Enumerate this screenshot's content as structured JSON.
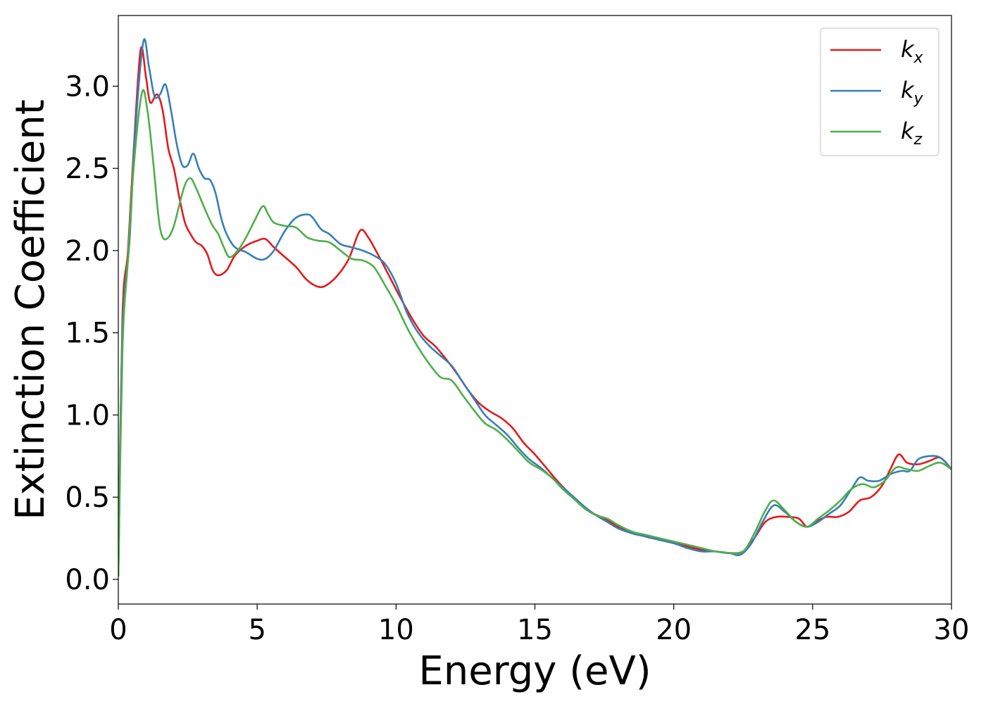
{
  "chart_data": {
    "type": "line",
    "title": "",
    "xlabel": "Energy (eV)",
    "ylabel": "Extinction Coefficient",
    "xlim": [
      0,
      30
    ],
    "ylim": [
      -0.15,
      3.43
    ],
    "xticks": [
      0,
      5,
      10,
      15,
      20,
      25,
      30
    ],
    "xtick_labels": [
      "0",
      "5",
      "10",
      "15",
      "20",
      "25",
      "30"
    ],
    "yticks": [
      0.0,
      0.5,
      1.0,
      1.5,
      2.0,
      2.5,
      3.0
    ],
    "ytick_labels": [
      "0.0",
      "0.5",
      "1.0",
      "1.5",
      "2.0",
      "2.5",
      "3.0"
    ],
    "grid": false,
    "legend_position": "top-right",
    "series": [
      {
        "name": "k",
        "subscript": "x",
        "color": "#e41a1c",
        "points": [
          [
            0,
            0.02
          ],
          [
            0.15,
            1.6
          ],
          [
            0.35,
            2.0
          ],
          [
            0.55,
            2.6
          ],
          [
            0.8,
            3.22
          ],
          [
            1.0,
            3.05
          ],
          [
            1.15,
            2.9
          ],
          [
            1.4,
            2.95
          ],
          [
            1.6,
            2.85
          ],
          [
            1.8,
            2.62
          ],
          [
            2.0,
            2.5
          ],
          [
            2.2,
            2.32
          ],
          [
            2.4,
            2.17
          ],
          [
            2.6,
            2.1
          ],
          [
            2.8,
            2.05
          ],
          [
            3.0,
            2.03
          ],
          [
            3.2,
            1.98
          ],
          [
            3.4,
            1.88
          ],
          [
            3.6,
            1.85
          ],
          [
            3.9,
            1.88
          ],
          [
            4.2,
            1.97
          ],
          [
            4.6,
            2.03
          ],
          [
            5.0,
            2.06
          ],
          [
            5.3,
            2.07
          ],
          [
            5.6,
            2.02
          ],
          [
            6.0,
            1.96
          ],
          [
            6.4,
            1.9
          ],
          [
            6.8,
            1.82
          ],
          [
            7.2,
            1.78
          ],
          [
            7.5,
            1.79
          ],
          [
            7.9,
            1.85
          ],
          [
            8.3,
            1.95
          ],
          [
            8.7,
            2.12
          ],
          [
            9.0,
            2.08
          ],
          [
            9.4,
            1.96
          ],
          [
            9.8,
            1.83
          ],
          [
            10.2,
            1.7
          ],
          [
            10.6,
            1.58
          ],
          [
            11.0,
            1.48
          ],
          [
            11.4,
            1.42
          ],
          [
            11.8,
            1.34
          ],
          [
            12.2,
            1.25
          ],
          [
            12.6,
            1.15
          ],
          [
            13.0,
            1.07
          ],
          [
            13.4,
            1.02
          ],
          [
            13.8,
            0.98
          ],
          [
            14.2,
            0.92
          ],
          [
            14.6,
            0.83
          ],
          [
            15.0,
            0.76
          ],
          [
            15.4,
            0.68
          ],
          [
            15.8,
            0.6
          ],
          [
            16.2,
            0.53
          ],
          [
            16.6,
            0.47
          ],
          [
            17.0,
            0.41
          ],
          [
            17.5,
            0.37
          ],
          [
            18.0,
            0.32
          ],
          [
            18.5,
            0.29
          ],
          [
            19.0,
            0.26
          ],
          [
            19.5,
            0.24
          ],
          [
            20.0,
            0.22
          ],
          [
            20.5,
            0.2
          ],
          [
            21.0,
            0.18
          ],
          [
            21.5,
            0.17
          ],
          [
            22.0,
            0.16
          ],
          [
            22.5,
            0.17
          ],
          [
            22.9,
            0.25
          ],
          [
            23.3,
            0.35
          ],
          [
            23.7,
            0.38
          ],
          [
            24.1,
            0.38
          ],
          [
            24.5,
            0.37
          ],
          [
            24.8,
            0.32
          ],
          [
            25.1,
            0.35
          ],
          [
            25.5,
            0.38
          ],
          [
            25.9,
            0.38
          ],
          [
            26.3,
            0.41
          ],
          [
            26.7,
            0.48
          ],
          [
            27.1,
            0.5
          ],
          [
            27.5,
            0.57
          ],
          [
            27.8,
            0.67
          ],
          [
            28.1,
            0.76
          ],
          [
            28.4,
            0.71
          ],
          [
            28.8,
            0.7
          ],
          [
            29.2,
            0.72
          ],
          [
            29.6,
            0.74
          ],
          [
            30.0,
            0.67
          ]
        ]
      },
      {
        "name": "k",
        "subscript": "y",
        "color": "#377eb8",
        "points": [
          [
            0,
            0.02
          ],
          [
            0.15,
            1.5
          ],
          [
            0.4,
            2.05
          ],
          [
            0.6,
            2.7
          ],
          [
            0.9,
            3.27
          ],
          [
            1.1,
            3.12
          ],
          [
            1.3,
            2.94
          ],
          [
            1.5,
            2.95
          ],
          [
            1.7,
            3.01
          ],
          [
            1.9,
            2.85
          ],
          [
            2.1,
            2.65
          ],
          [
            2.3,
            2.52
          ],
          [
            2.5,
            2.52
          ],
          [
            2.7,
            2.59
          ],
          [
            2.9,
            2.5
          ],
          [
            3.1,
            2.44
          ],
          [
            3.3,
            2.43
          ],
          [
            3.5,
            2.35
          ],
          [
            3.7,
            2.2
          ],
          [
            3.9,
            2.1
          ],
          [
            4.2,
            2.02
          ],
          [
            4.6,
            1.99
          ],
          [
            5.0,
            1.95
          ],
          [
            5.3,
            1.95
          ],
          [
            5.6,
            2.0
          ],
          [
            6.0,
            2.12
          ],
          [
            6.4,
            2.2
          ],
          [
            6.8,
            2.22
          ],
          [
            7.0,
            2.2
          ],
          [
            7.3,
            2.13
          ],
          [
            7.6,
            2.1
          ],
          [
            8.0,
            2.04
          ],
          [
            8.4,
            2.02
          ],
          [
            8.8,
            2.0
          ],
          [
            9.2,
            1.97
          ],
          [
            9.6,
            1.92
          ],
          [
            10.0,
            1.8
          ],
          [
            10.4,
            1.62
          ],
          [
            10.8,
            1.5
          ],
          [
            11.2,
            1.42
          ],
          [
            11.6,
            1.36
          ],
          [
            12.0,
            1.3
          ],
          [
            12.4,
            1.2
          ],
          [
            12.8,
            1.1
          ],
          [
            13.2,
            1.0
          ],
          [
            13.6,
            0.94
          ],
          [
            14.0,
            0.88
          ],
          [
            14.4,
            0.8
          ],
          [
            14.8,
            0.73
          ],
          [
            15.2,
            0.68
          ],
          [
            15.6,
            0.62
          ],
          [
            16.0,
            0.56
          ],
          [
            16.4,
            0.5
          ],
          [
            16.8,
            0.44
          ],
          [
            17.2,
            0.39
          ],
          [
            17.6,
            0.35
          ],
          [
            18.0,
            0.31
          ],
          [
            18.5,
            0.28
          ],
          [
            19.0,
            0.26
          ],
          [
            19.5,
            0.24
          ],
          [
            20.0,
            0.22
          ],
          [
            20.5,
            0.19
          ],
          [
            21.0,
            0.17
          ],
          [
            21.5,
            0.17
          ],
          [
            22.0,
            0.16
          ],
          [
            22.4,
            0.15
          ],
          [
            22.8,
            0.22
          ],
          [
            23.2,
            0.35
          ],
          [
            23.6,
            0.45
          ],
          [
            24.0,
            0.41
          ],
          [
            24.4,
            0.35
          ],
          [
            24.8,
            0.32
          ],
          [
            25.2,
            0.35
          ],
          [
            25.6,
            0.4
          ],
          [
            26.0,
            0.45
          ],
          [
            26.4,
            0.55
          ],
          [
            26.7,
            0.62
          ],
          [
            27.0,
            0.6
          ],
          [
            27.4,
            0.6
          ],
          [
            27.8,
            0.64
          ],
          [
            28.2,
            0.66
          ],
          [
            28.5,
            0.66
          ],
          [
            28.8,
            0.73
          ],
          [
            29.2,
            0.75
          ],
          [
            29.6,
            0.74
          ],
          [
            30.0,
            0.67
          ]
        ]
      },
      {
        "name": "k",
        "subscript": "z",
        "color": "#4daf4a",
        "points": [
          [
            0,
            0.02
          ],
          [
            0.15,
            1.4
          ],
          [
            0.35,
            1.95
          ],
          [
            0.55,
            2.5
          ],
          [
            0.85,
            2.96
          ],
          [
            1.05,
            2.85
          ],
          [
            1.25,
            2.55
          ],
          [
            1.45,
            2.2
          ],
          [
            1.6,
            2.08
          ],
          [
            1.8,
            2.08
          ],
          [
            2.0,
            2.15
          ],
          [
            2.2,
            2.28
          ],
          [
            2.4,
            2.4
          ],
          [
            2.6,
            2.44
          ],
          [
            2.8,
            2.38
          ],
          [
            3.0,
            2.3
          ],
          [
            3.2,
            2.22
          ],
          [
            3.4,
            2.15
          ],
          [
            3.6,
            2.1
          ],
          [
            3.8,
            2.02
          ],
          [
            4.0,
            1.96
          ],
          [
            4.3,
            2.0
          ],
          [
            4.6,
            2.08
          ],
          [
            4.9,
            2.18
          ],
          [
            5.2,
            2.27
          ],
          [
            5.4,
            2.22
          ],
          [
            5.6,
            2.17
          ],
          [
            6.0,
            2.15
          ],
          [
            6.4,
            2.14
          ],
          [
            6.8,
            2.08
          ],
          [
            7.2,
            2.06
          ],
          [
            7.6,
            2.05
          ],
          [
            8.0,
            2.0
          ],
          [
            8.4,
            1.95
          ],
          [
            8.8,
            1.94
          ],
          [
            9.2,
            1.9
          ],
          [
            9.6,
            1.79
          ],
          [
            10.0,
            1.67
          ],
          [
            10.4,
            1.53
          ],
          [
            10.8,
            1.41
          ],
          [
            11.2,
            1.31
          ],
          [
            11.6,
            1.23
          ],
          [
            12.0,
            1.21
          ],
          [
            12.4,
            1.12
          ],
          [
            12.8,
            1.03
          ],
          [
            13.2,
            0.95
          ],
          [
            13.6,
            0.91
          ],
          [
            14.0,
            0.85
          ],
          [
            14.4,
            0.78
          ],
          [
            14.8,
            0.71
          ],
          [
            15.2,
            0.67
          ],
          [
            15.6,
            0.62
          ],
          [
            16.0,
            0.55
          ],
          [
            16.4,
            0.49
          ],
          [
            16.8,
            0.43
          ],
          [
            17.2,
            0.39
          ],
          [
            17.6,
            0.37
          ],
          [
            18.0,
            0.33
          ],
          [
            18.5,
            0.29
          ],
          [
            19.0,
            0.27
          ],
          [
            19.5,
            0.25
          ],
          [
            20.0,
            0.23
          ],
          [
            20.5,
            0.21
          ],
          [
            21.0,
            0.19
          ],
          [
            21.5,
            0.17
          ],
          [
            22.0,
            0.16
          ],
          [
            22.5,
            0.17
          ],
          [
            22.9,
            0.28
          ],
          [
            23.3,
            0.42
          ],
          [
            23.6,
            0.48
          ],
          [
            24.0,
            0.42
          ],
          [
            24.4,
            0.35
          ],
          [
            24.8,
            0.32
          ],
          [
            25.2,
            0.37
          ],
          [
            25.6,
            0.42
          ],
          [
            26.0,
            0.48
          ],
          [
            26.4,
            0.55
          ],
          [
            26.8,
            0.58
          ],
          [
            27.2,
            0.56
          ],
          [
            27.6,
            0.6
          ],
          [
            28.0,
            0.68
          ],
          [
            28.4,
            0.67
          ],
          [
            28.8,
            0.66
          ],
          [
            29.2,
            0.69
          ],
          [
            29.6,
            0.71
          ],
          [
            30.0,
            0.67
          ]
        ]
      }
    ]
  }
}
